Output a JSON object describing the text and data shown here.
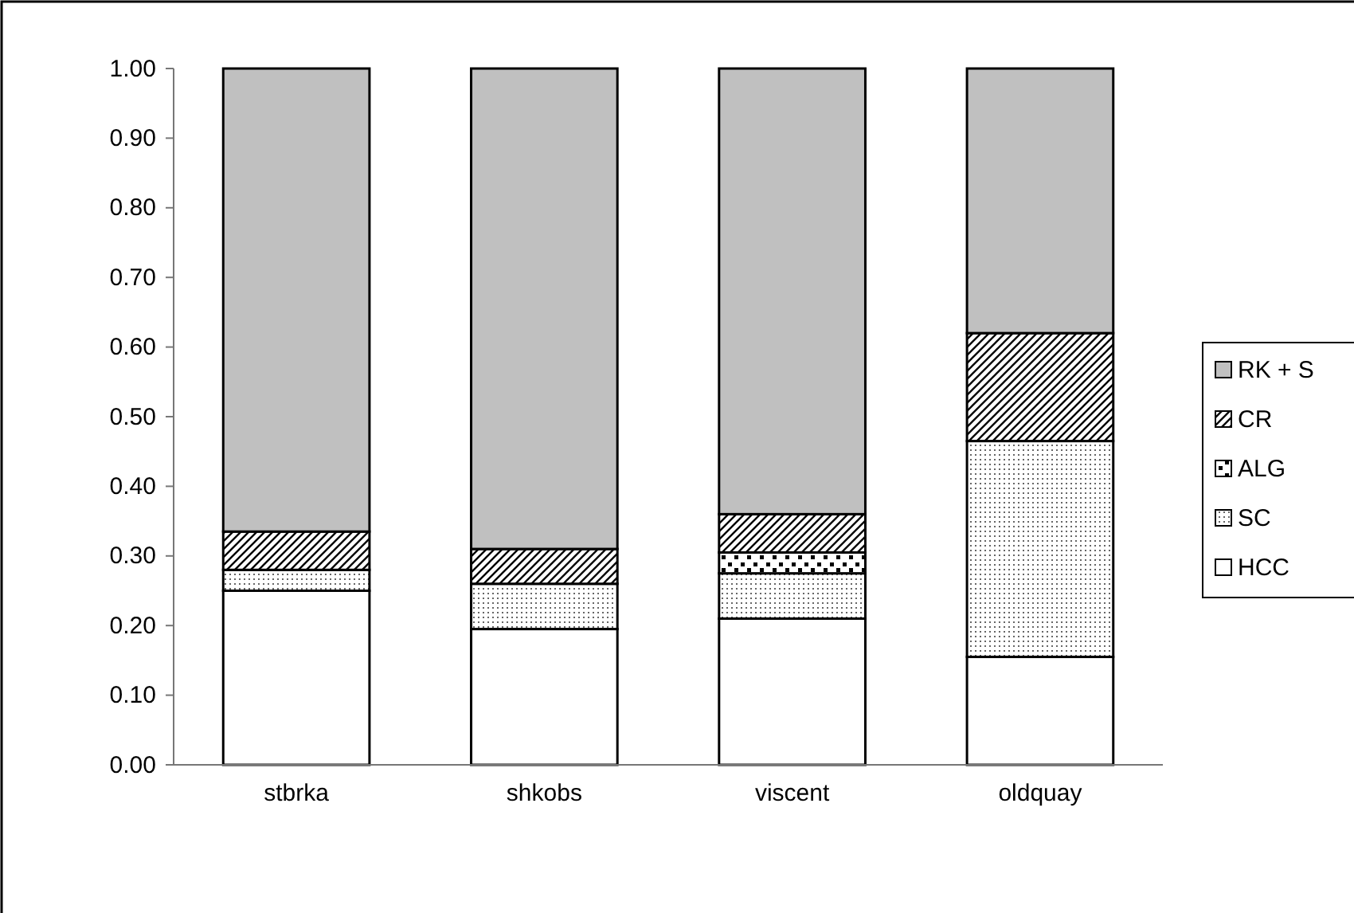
{
  "chart_data": {
    "type": "bar",
    "stacked": true,
    "categories": [
      "stbrka",
      "shkobs",
      "viscent",
      "oldquay"
    ],
    "series": [
      {
        "name": "HCC",
        "color": "#ffffff",
        "values": [
          0.25,
          0.195,
          0.21,
          0.155
        ]
      },
      {
        "name": "SC",
        "color": "#000000",
        "values": [
          0.03,
          0.065,
          0.065,
          0.31
        ]
      },
      {
        "name": "ALG",
        "color": "#000000",
        "values": [
          0,
          0,
          0.03,
          0
        ]
      },
      {
        "name": "CR",
        "color": "#000000",
        "values": [
          0.055,
          0.05,
          0.055,
          0.155
        ]
      },
      {
        "name": "RK + S",
        "color": "#c0c0c0",
        "values": [
          0.665,
          0.69,
          0.64,
          0.38
        ]
      }
    ],
    "ylim": [
      0,
      1
    ],
    "yticks": [
      {
        "value": 0,
        "label": "0.00"
      },
      {
        "value": 0.1,
        "label": "0.10"
      },
      {
        "value": 0.2,
        "label": "0.20"
      },
      {
        "value": 0.3,
        "label": "0.30"
      },
      {
        "value": 0.4,
        "label": "0.40"
      },
      {
        "value": 0.5,
        "label": "0.50"
      },
      {
        "value": 0.6,
        "label": "0.60"
      },
      {
        "value": 0.7,
        "label": "0.70"
      },
      {
        "value": 0.8,
        "label": "0.80"
      },
      {
        "value": 0.9,
        "label": "0.90"
      },
      {
        "value": 1,
        "label": "1.00"
      }
    ],
    "grid": false,
    "legend": "right"
  }
}
